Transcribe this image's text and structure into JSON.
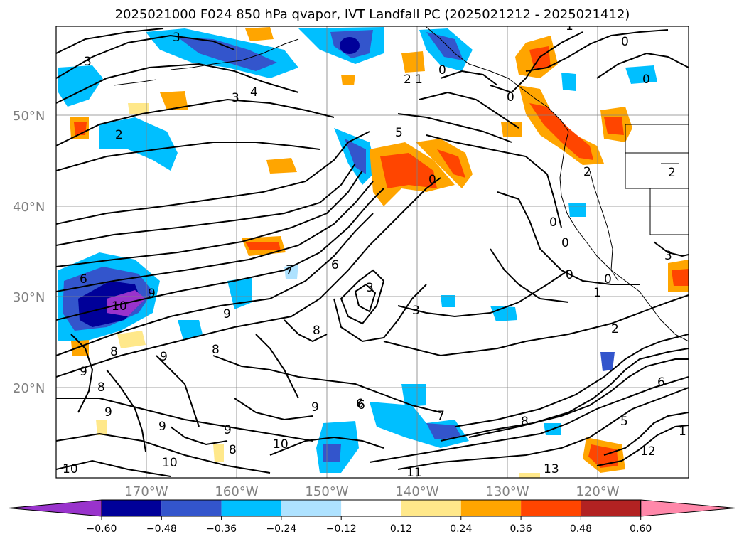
{
  "title": "2025021000 F024 850 hPa qvapor, IVT Landfall PC (2025021212 - 2025021412)",
  "map": {
    "lon_range": [
      -180,
      -110
    ],
    "lat_range": [
      10,
      60
    ],
    "lat_labels": [
      "50°N",
      "40°N",
      "30°N",
      "20°N"
    ],
    "lon_labels": [
      "170°W",
      "160°W",
      "150°W",
      "140°W",
      "130°W",
      "120°W"
    ],
    "gridlines": true,
    "contour_labels": [
      "3",
      "3",
      "3",
      "4",
      "2",
      "5",
      "2",
      "1",
      "0",
      "0",
      "0",
      "0",
      "1",
      "2",
      "0",
      "0",
      "0",
      "0",
      "1",
      "0",
      "2",
      "3",
      "6",
      "10",
      "9",
      "8",
      "9",
      "9",
      "7",
      "6",
      "3",
      "3",
      "8",
      "9",
      "8",
      "8",
      "9",
      "9",
      "9",
      "8",
      "10",
      "10",
      "10",
      "9",
      "6",
      "7",
      "11",
      "13",
      "12",
      "5",
      "6",
      "1",
      "2",
      "6",
      "8"
    ]
  },
  "colorbar": {
    "ticks": [
      "−0.60",
      "−0.48",
      "−0.36",
      "−0.24",
      "−0.12",
      "0.12",
      "0.24",
      "0.36",
      "0.48",
      "0.60"
    ],
    "colors": [
      "#9933cc",
      "#000099",
      "#3355cc",
      "#00bfff",
      "#aee2ff",
      "#ffffff",
      "#ffe88a",
      "#ffa500",
      "#ff4500",
      "#b22222",
      "#ff88aa"
    ],
    "extend": "both"
  }
}
